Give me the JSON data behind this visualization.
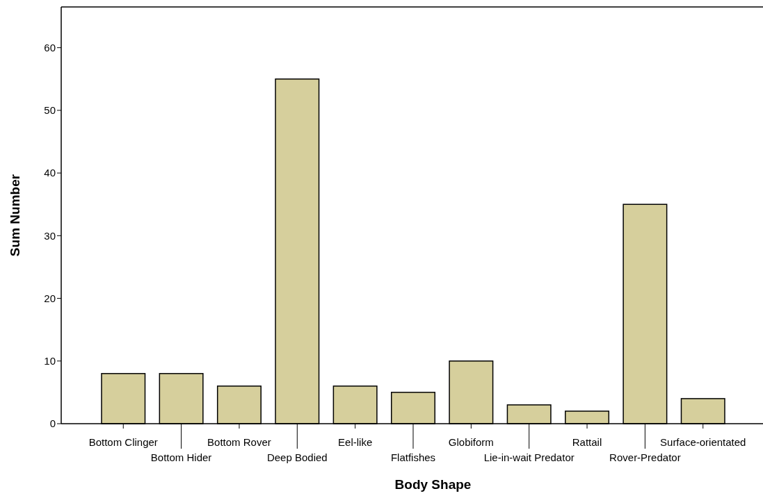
{
  "chart_data": {
    "type": "bar",
    "xlabel": "Body Shape",
    "ylabel": "Sum Number",
    "categories": [
      "Bottom Clinger",
      "Bottom Hider",
      "Bottom Rover",
      "Deep Bodied",
      "Eel-like",
      "Flatfishes",
      "Globiform",
      "Lie-in-wait Predator",
      "Rattail",
      "Rover-Predator",
      "Surface-orientated"
    ],
    "values": [
      8,
      8,
      6,
      55,
      6,
      5,
      10,
      3,
      2,
      35,
      4
    ],
    "color": "#d6cf9c",
    "ylim": [
      0,
      66.5
    ],
    "yticks": [
      0,
      10,
      20,
      30,
      40,
      50,
      60
    ],
    "grid": false
  }
}
